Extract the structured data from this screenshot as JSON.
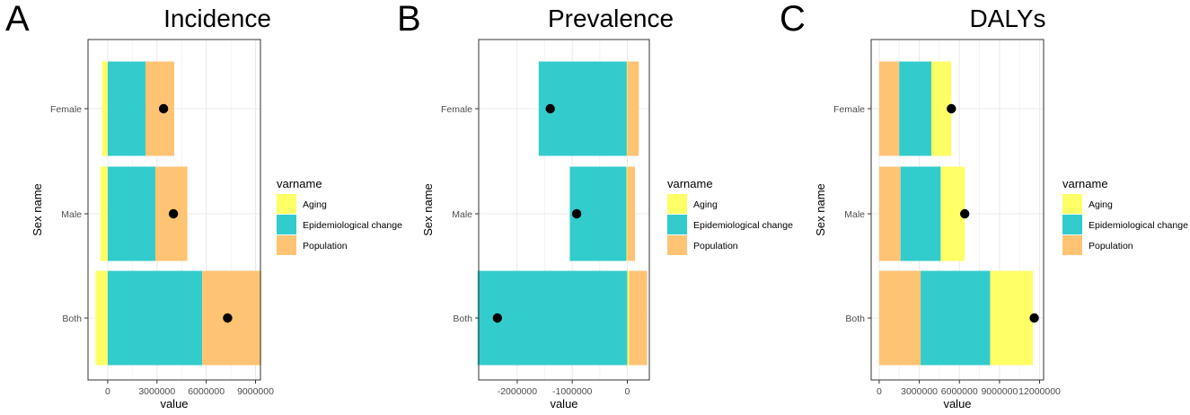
{
  "colors": {
    "aging": "#FFFF66",
    "epidemiological": "#33CCCC",
    "population": "#FFC374",
    "point": "#000000",
    "grid": "#EBEBEB",
    "border": "#333333"
  },
  "legend": {
    "title": "varname",
    "items": [
      "Aging",
      "Epidemiological change",
      "Population"
    ]
  },
  "chart_data": [
    {
      "type": "bar",
      "panel_letter": "A",
      "title": "Incidence",
      "xlabel": "value",
      "ylabel": "Sex name",
      "categories": [
        "Female",
        "Male",
        "Both"
      ],
      "xlim": [
        -1200000,
        9300000
      ],
      "xticks": [
        0,
        3000000,
        6000000,
        9000000
      ],
      "xtick_labels": [
        "0",
        "3000000",
        "6000000",
        "9000000"
      ],
      "series": [
        {
          "name": "Aging",
          "values": [
            -350000,
            -450000,
            -750000
          ]
        },
        {
          "name": "Epidemiological change",
          "values": [
            2300000,
            2900000,
            5750000
          ]
        },
        {
          "name": "Population",
          "values": [
            1750000,
            1950000,
            3600000
          ]
        }
      ],
      "overall": [
        3400000,
        4000000,
        7300000
      ]
    },
    {
      "type": "bar",
      "panel_letter": "B",
      "title": "Prevalence",
      "xlabel": "value",
      "ylabel": "Sex name",
      "categories": [
        "Female",
        "Male",
        "Both"
      ],
      "xlim": [
        -2700000,
        400000
      ],
      "xticks": [
        -2000000,
        -1000000,
        0
      ],
      "xtick_labels": [
        "-2000000",
        "-1000000",
        "0"
      ],
      "series": [
        {
          "name": "Aging",
          "values": [
            -10000,
            -15000,
            30000
          ]
        },
        {
          "name": "Epidemiological change",
          "values": [
            -1600000,
            -1030000,
            -2720000
          ]
        },
        {
          "name": "Population",
          "values": [
            210000,
            140000,
            330000
          ]
        }
      ],
      "overall": [
        -1400000,
        -920000,
        -2360000
      ]
    },
    {
      "type": "bar",
      "panel_letter": "C",
      "title": "DALYs",
      "xlabel": "value",
      "ylabel": "Sex name",
      "categories": [
        "Female",
        "Male",
        "Both"
      ],
      "xlim": [
        -600000,
        12300000
      ],
      "xticks": [
        0,
        3000000,
        6000000,
        9000000,
        12000000
      ],
      "xtick_labels": [
        "0",
        "3000000",
        "6000000",
        "9000000",
        "12000000"
      ],
      "series": [
        {
          "name": "Population",
          "values": [
            1500000,
            1600000,
            3100000
          ]
        },
        {
          "name": "Epidemiological change",
          "values": [
            2400000,
            3000000,
            5200000
          ]
        },
        {
          "name": "Aging",
          "values": [
            1500000,
            1800000,
            3200000
          ]
        }
      ],
      "overall": [
        5400000,
        6400000,
        11600000
      ]
    }
  ]
}
